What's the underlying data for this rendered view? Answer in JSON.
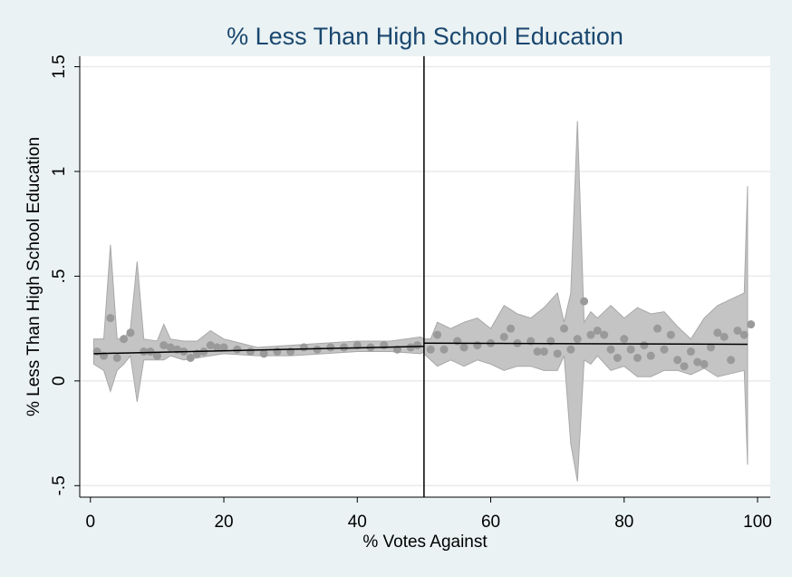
{
  "chart_data": {
    "type": "rdplot",
    "title": "% Less Than High School Education",
    "x_label": "% Votes Against",
    "y_label": "% Less Than High School Education",
    "xlim": [
      -1.6,
      101.9
    ],
    "ylim": [
      -0.555,
      1.55
    ],
    "xticks": [
      0,
      20,
      40,
      60,
      80,
      100
    ],
    "yticks": [
      {
        "value": -0.5,
        "label": "-.5"
      },
      0,
      {
        "value": 0.5,
        "label": ".5"
      },
      1,
      1.5
    ],
    "grid": true,
    "cutoff": 50,
    "points": {
      "color": "#9a9a9a",
      "x": [
        1,
        2,
        3,
        4,
        5,
        6,
        8,
        9,
        10,
        11,
        12,
        13,
        14,
        15,
        16,
        17,
        18,
        19,
        20,
        22,
        24,
        26,
        28,
        30,
        32,
        34,
        36,
        38,
        40,
        42,
        44,
        46,
        48,
        49,
        51,
        52,
        53,
        55,
        56,
        58,
        60,
        62,
        63,
        64,
        66,
        67,
        68,
        69,
        70,
        71,
        72,
        73,
        74,
        75,
        76,
        77,
        78,
        79,
        80,
        81,
        82,
        83,
        84,
        85,
        86,
        87,
        88,
        89,
        90,
        91,
        92,
        93,
        94,
        95,
        96,
        97,
        98,
        99
      ],
      "values": [
        0.14,
        0.12,
        0.3,
        0.11,
        0.2,
        0.23,
        0.14,
        0.14,
        0.12,
        0.17,
        0.16,
        0.15,
        0.14,
        0.11,
        0.13,
        0.14,
        0.17,
        0.16,
        0.16,
        0.15,
        0.14,
        0.13,
        0.14,
        0.14,
        0.16,
        0.15,
        0.16,
        0.16,
        0.17,
        0.16,
        0.17,
        0.15,
        0.16,
        0.17,
        0.15,
        0.22,
        0.15,
        0.19,
        0.16,
        0.17,
        0.18,
        0.21,
        0.25,
        0.18,
        0.19,
        0.14,
        0.14,
        0.19,
        0.13,
        0.25,
        0.15,
        0.2,
        0.38,
        0.22,
        0.24,
        0.22,
        0.15,
        0.11,
        0.2,
        0.15,
        0.11,
        0.17,
        0.12,
        0.25,
        0.15,
        0.22,
        0.1,
        0.07,
        0.14,
        0.09,
        0.08,
        0.16,
        0.23,
        0.21,
        0.1,
        0.24,
        0.22,
        0.27
      ]
    },
    "bands": [
      {
        "color": "#c4c4c4",
        "x": [
          0.5,
          2,
          3,
          4,
          5,
          6,
          7,
          8,
          10,
          11,
          12,
          14,
          16,
          18,
          20,
          25,
          30,
          35,
          40,
          45,
          49.5,
          50
        ],
        "upper": [
          0.2,
          0.2,
          0.65,
          0.2,
          0.2,
          0.25,
          0.57,
          0.2,
          0.19,
          0.27,
          0.2,
          0.19,
          0.19,
          0.24,
          0.2,
          0.16,
          0.17,
          0.18,
          0.19,
          0.19,
          0.21,
          0.2
        ],
        "lower": [
          0.08,
          0.05,
          -0.05,
          0.05,
          0.08,
          0.12,
          -0.1,
          0.1,
          0.1,
          0.1,
          0.12,
          0.1,
          0.11,
          0.12,
          0.13,
          0.12,
          0.12,
          0.13,
          0.14,
          0.14,
          0.13,
          0.14
        ]
      },
      {
        "color": "#c4c4c4",
        "x": [
          50,
          51,
          52,
          54,
          56,
          58,
          60,
          62,
          64,
          66,
          68,
          70,
          71,
          72,
          73,
          74,
          75,
          76,
          78,
          80,
          82,
          84,
          86,
          88,
          90,
          92,
          94,
          98,
          98.5
        ],
        "upper": [
          0.2,
          0.2,
          0.28,
          0.25,
          0.28,
          0.3,
          0.25,
          0.36,
          0.32,
          0.3,
          0.35,
          0.42,
          0.28,
          0.42,
          1.24,
          0.28,
          0.33,
          0.3,
          0.36,
          0.3,
          0.35,
          0.32,
          0.33,
          0.26,
          0.2,
          0.3,
          0.36,
          0.42,
          0.93
        ],
        "lower": [
          0.13,
          0.1,
          0.07,
          0.1,
          0.07,
          0.1,
          0.08,
          0.05,
          0.07,
          0.07,
          0.05,
          0.05,
          0.12,
          -0.3,
          -0.48,
          0.1,
          0.08,
          0.12,
          0.05,
          0.07,
          0.02,
          0.02,
          0.05,
          0.05,
          0.03,
          0.06,
          0.02,
          0.05,
          -0.4
        ]
      }
    ],
    "fits": [
      {
        "color": "#000000",
        "x": [
          0.5,
          50
        ],
        "values": [
          0.13,
          0.165
        ]
      },
      {
        "color": "#000000",
        "x": [
          50,
          98.5
        ],
        "values": [
          0.18,
          0.175
        ]
      }
    ]
  }
}
